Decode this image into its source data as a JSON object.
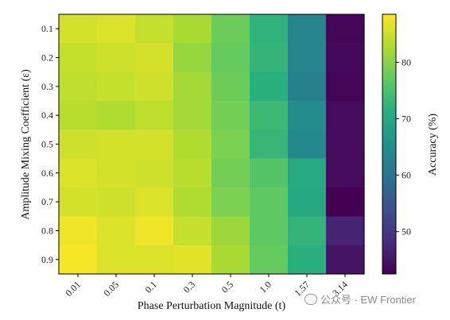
{
  "chart_data": {
    "type": "heatmap",
    "xlabel": "Phase Perturbation Magnitude (t)",
    "ylabel": "Amplitude Mixing Coefficient (ε)",
    "colorbar_label": "Accuracy (%)",
    "x_categories": [
      "0.01",
      "0.05",
      "0.1",
      "0.3",
      "0.5",
      "1.0",
      "1.57",
      "3.14"
    ],
    "y_categories": [
      "0.1",
      "0.2",
      "0.3",
      "0.4",
      "0.5",
      "0.6",
      "0.7",
      "0.8",
      "0.9"
    ],
    "colorbar_ticks": [
      50,
      60,
      70,
      80
    ],
    "colorbar_range": [
      42.5,
      88.5
    ],
    "colormap": "viridis",
    "values": [
      [
        85.5,
        86.0,
        84.5,
        82.5,
        78.0,
        72.0,
        63.0,
        43.0
      ],
      [
        84.5,
        85.0,
        85.5,
        81.0,
        77.5,
        72.5,
        63.0,
        43.5
      ],
      [
        84.0,
        84.5,
        85.0,
        82.0,
        78.0,
        71.5,
        62.5,
        43.0
      ],
      [
        83.5,
        83.0,
        84.0,
        82.0,
        78.5,
        73.5,
        64.5,
        44.0
      ],
      [
        85.0,
        85.5,
        85.5,
        83.0,
        79.0,
        73.0,
        64.0,
        44.0
      ],
      [
        86.0,
        85.5,
        85.0,
        83.5,
        78.5,
        76.0,
        70.5,
        44.0
      ],
      [
        85.5,
        85.0,
        86.0,
        83.0,
        79.0,
        77.0,
        70.0,
        42.5
      ],
      [
        87.5,
        86.0,
        87.5,
        84.5,
        81.5,
        77.0,
        72.5,
        47.0
      ],
      [
        88.0,
        86.0,
        86.0,
        86.5,
        82.5,
        77.5,
        71.5,
        45.0
      ]
    ]
  },
  "watermark": {
    "text": "公众号 · EW Frontier"
  }
}
